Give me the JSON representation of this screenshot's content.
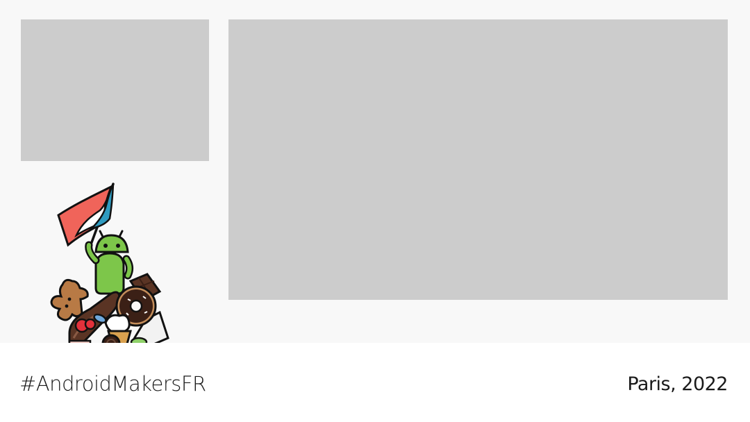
{
  "footer": {
    "hashtag": "#AndroidMakersFR",
    "location": "Paris, 2022"
  },
  "illustration": {
    "icon": "android-mascot-on-sweets-with-flag-icon",
    "colors": {
      "android_green": "#7dc64a",
      "flag_red": "#f0645a",
      "flag_blue": "#2f9bc0",
      "chocolate": "#5a3424",
      "cookie": "#b87a45",
      "strawberry": "#e2313b"
    }
  },
  "placeholders": {
    "color": "#cccccc",
    "background": "#f8f8f8"
  }
}
